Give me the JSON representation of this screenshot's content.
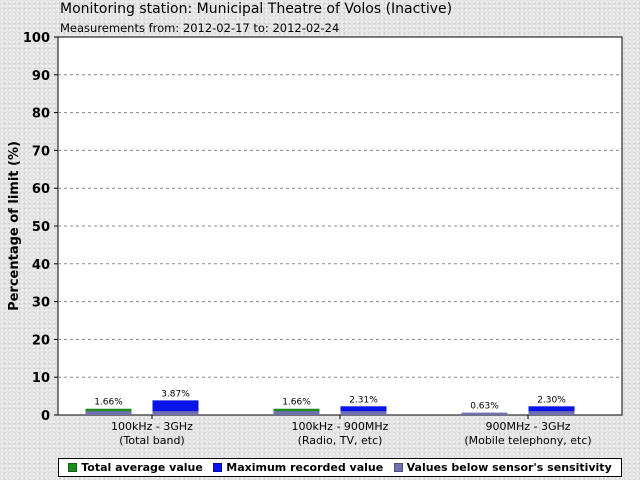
{
  "header": {
    "title": "Monitoring station: Municipal Theatre of Volos (Inactive)",
    "subtitle": "Measurements from: 2012-02-17 to: 2012-02-24"
  },
  "legend": {
    "total_average": "Total average value",
    "maximum": "Maximum recorded value",
    "below_sensitivity": "Values below sensor's sensitivity"
  },
  "colors": {
    "total_average": "#1e8a1e",
    "maximum": "#0a14e8",
    "below_sensitivity": "#7070b0"
  },
  "chart_data": {
    "type": "bar",
    "ylabel": "Percentage of limit (%)",
    "ylim": [
      0,
      100
    ],
    "yticks": [
      0,
      10,
      20,
      30,
      40,
      50,
      60,
      70,
      80,
      90,
      100
    ],
    "grid": true,
    "legend_position": "bottom",
    "categories": [
      {
        "line1": "100kHz - 3GHz",
        "line2": "(Total band)"
      },
      {
        "line1": "100kHz - 900MHz",
        "line2": "(Radio, TV, etc)"
      },
      {
        "line1": "900MHz - 3GHz",
        "line2": "(Mobile telephony, etc)"
      }
    ],
    "series": [
      {
        "name": "Total average value",
        "values": [
          1.66,
          1.66,
          0.63
        ],
        "labels": [
          "1.66%",
          "1.66%",
          "0.63%"
        ],
        "below_sensitivity": [
          false,
          false,
          true
        ]
      },
      {
        "name": "Maximum recorded value",
        "values": [
          3.87,
          2.31,
          2.3
        ],
        "labels": [
          "3.87%",
          "2.31%",
          "2.30%"
        ],
        "below_sensitivity": [
          false,
          false,
          false
        ]
      }
    ],
    "sensitivity_floor": 1.0
  }
}
